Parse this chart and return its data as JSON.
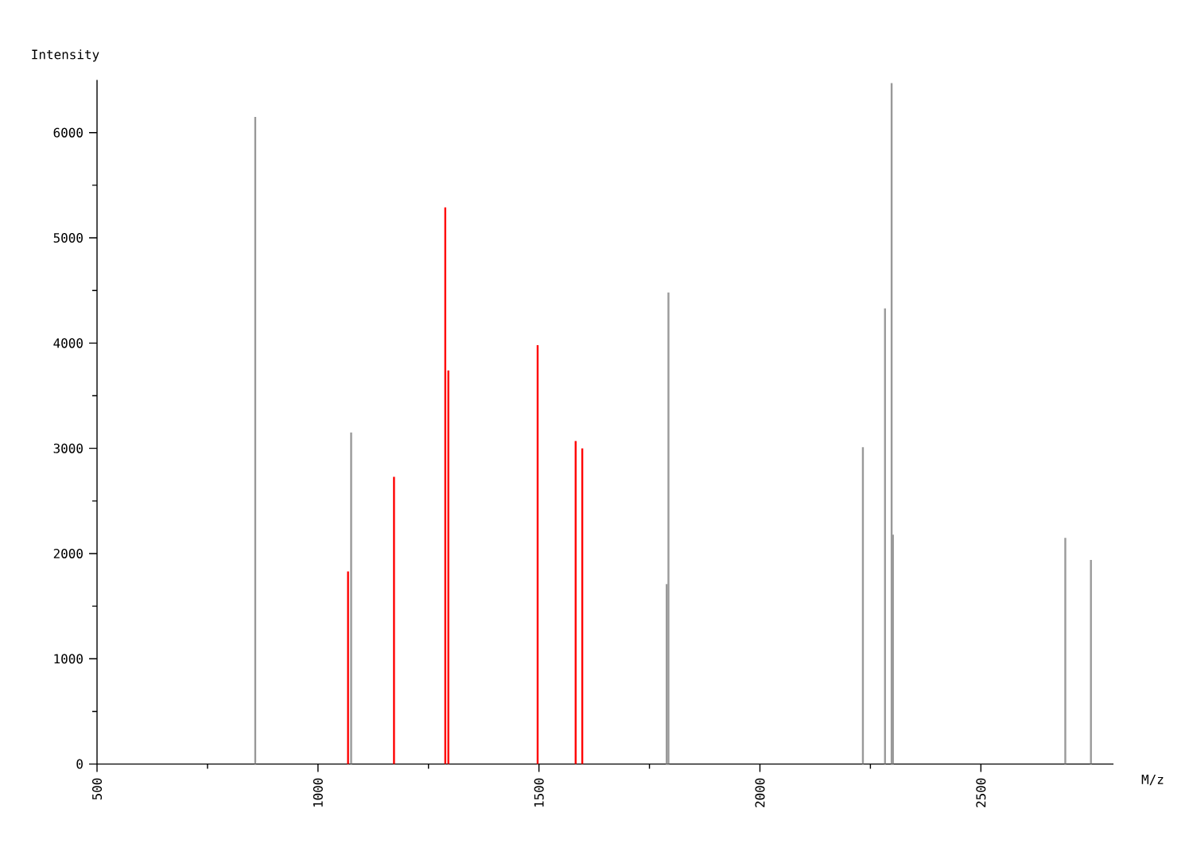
{
  "chart_data": {
    "type": "bar",
    "xlabel": "M/z",
    "ylabel": "Intensity",
    "xlim": [
      500,
      2800
    ],
    "ylim": [
      0,
      6500
    ],
    "xticks": [
      500,
      {
        "value": 750,
        "label": null
      },
      1000,
      {
        "value": 1250,
        "label": null
      },
      1500,
      {
        "value": 1750,
        "label": null
      },
      2000,
      {
        "value": 2250,
        "label": null
      },
      2500
    ],
    "yticks": [
      0,
      {
        "value": 500,
        "label": null
      },
      1000,
      {
        "value": 1500,
        "label": null
      },
      2000,
      {
        "value": 2500,
        "label": null
      },
      3000,
      {
        "value": 3500,
        "label": null
      },
      4000,
      {
        "value": 4500,
        "label": null
      },
      5000,
      {
        "value": 5500,
        "label": null
      },
      6000
    ],
    "x": [
      858,
      1068,
      1075,
      1172,
      1288,
      1295,
      1497,
      1583,
      1598,
      1789,
      1793,
      2233,
      2283,
      2298,
      2301,
      2691,
      2749
    ],
    "values": [
      6150,
      1830,
      3150,
      2730,
      5290,
      3740,
      3980,
      3070,
      3000,
      1710,
      4480,
      3010,
      4330,
      6470,
      2180,
      2150,
      1940
    ],
    "colors": [
      "#999999",
      "#ff0000",
      "#999999",
      "#ff0000",
      "#ff0000",
      "#ff0000",
      "#ff0000",
      "#ff0000",
      "#ff0000",
      "#999999",
      "#999999",
      "#999999",
      "#999999",
      "#999999",
      "#999999",
      "#999999",
      "#999999"
    ]
  }
}
